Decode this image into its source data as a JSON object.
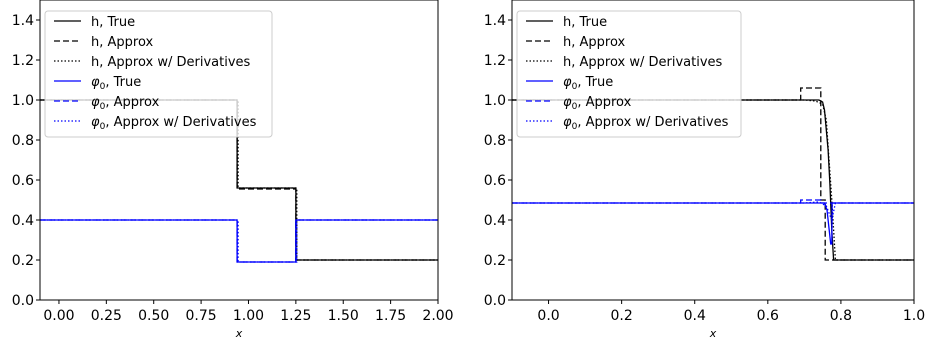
{
  "chart_data": [
    {
      "type": "line",
      "xlabel": "x",
      "ylabel": "",
      "xlim": [
        -0.1,
        2.0
      ],
      "ylim": [
        0.0,
        1.5
      ],
      "xticks": [
        "0.00",
        "0.25",
        "0.50",
        "0.75",
        "1.00",
        "1.25",
        "1.50",
        "1.75",
        "2.00"
      ],
      "yticks": [
        "0.0",
        "0.2",
        "0.4",
        "0.6",
        "0.8",
        "1.0",
        "1.2",
        "1.4"
      ],
      "legend_position": "top-left",
      "series": [
        {
          "name": "h, True",
          "color": "#000000",
          "style": "solid",
          "x": [
            -0.1,
            0.94,
            0.94,
            1.25,
            1.25,
            2.0
          ],
          "y": [
            1.0,
            1.0,
            0.56,
            0.56,
            0.2,
            0.2
          ]
        },
        {
          "name": "h, Approx",
          "color": "#000000",
          "style": "dashed",
          "x": [
            -0.1,
            0.94,
            0.94,
            1.25,
            1.25,
            2.0
          ],
          "y": [
            1.0,
            1.0,
            0.555,
            0.555,
            0.2,
            0.2
          ]
        },
        {
          "name": "h, Approx w/ Derivatives",
          "color": "#000000",
          "style": "dotted",
          "x": [
            -0.1,
            0.945,
            0.945,
            1.255,
            1.255,
            2.0
          ],
          "y": [
            1.0,
            1.0,
            0.56,
            0.56,
            0.2,
            0.2
          ]
        },
        {
          "name": "φ0, True",
          "color": "#0000ff",
          "style": "solid",
          "x": [
            -0.1,
            0.94,
            0.94,
            1.25,
            1.25,
            2.0
          ],
          "y": [
            0.4,
            0.4,
            0.19,
            0.19,
            0.4,
            0.4
          ]
        },
        {
          "name": "φ0, Approx",
          "color": "#0000ff",
          "style": "dashed",
          "x": [
            -0.1,
            0.94,
            0.94,
            1.25,
            1.25,
            2.0
          ],
          "y": [
            0.4,
            0.4,
            0.19,
            0.19,
            0.4,
            0.4
          ]
        },
        {
          "name": "φ0, Approx w/ Derivatives",
          "color": "#0000ff",
          "style": "dotted",
          "x": [
            -0.1,
            0.945,
            0.945,
            1.255,
            1.255,
            2.0
          ],
          "y": [
            0.4,
            0.4,
            0.19,
            0.19,
            0.4,
            0.4
          ]
        }
      ]
    },
    {
      "type": "line",
      "xlabel": "x",
      "ylabel": "",
      "xlim": [
        -0.1,
        1.0
      ],
      "ylim": [
        0.0,
        1.5
      ],
      "xticks": [
        "0.0",
        "0.2",
        "0.4",
        "0.6",
        "0.8",
        "1.0"
      ],
      "yticks": [
        "0.0",
        "0.2",
        "0.4",
        "0.6",
        "0.8",
        "1.0",
        "1.2",
        "1.4"
      ],
      "legend_position": "top-left",
      "series": [
        {
          "name": "h, True",
          "color": "#000000",
          "style": "solid",
          "x": [
            -0.1,
            0.74,
            0.75,
            0.755,
            0.765,
            0.77,
            0.77,
            0.775,
            0.78,
            1.0
          ],
          "y": [
            1.0,
            1.0,
            0.99,
            0.95,
            0.75,
            0.58,
            0.58,
            0.35,
            0.2,
            0.2
          ]
        },
        {
          "name": "h, Approx",
          "color": "#000000",
          "style": "dashed",
          "x": [
            -0.1,
            0.69,
            0.69,
            0.745,
            0.745,
            0.757,
            0.757,
            0.775,
            0.775,
            1.0
          ],
          "y": [
            1.0,
            1.0,
            1.06,
            1.06,
            0.5,
            0.5,
            0.2,
            0.2,
            0.2,
            0.2
          ]
        },
        {
          "name": "h, Approx w/ Derivatives",
          "color": "#000000",
          "style": "dotted",
          "x": [
            -0.1,
            0.7,
            0.73,
            0.75,
            0.76,
            0.775,
            0.785,
            1.0
          ],
          "y": [
            1.0,
            1.0,
            0.995,
            0.98,
            0.9,
            0.5,
            0.2,
            0.2
          ]
        },
        {
          "name": "φ0, True",
          "color": "#0000ff",
          "style": "solid",
          "x": [
            -0.1,
            0.755,
            0.762,
            0.768,
            0.772,
            0.775,
            0.776,
            0.78,
            1.0
          ],
          "y": [
            0.485,
            0.485,
            0.45,
            0.35,
            0.28,
            0.28,
            0.485,
            0.485,
            0.485
          ]
        },
        {
          "name": "φ0, Approx",
          "color": "#0000ff",
          "style": "dashed",
          "x": [
            -0.1,
            0.69,
            0.69,
            0.745,
            0.745,
            0.775,
            1.0
          ],
          "y": [
            0.485,
            0.485,
            0.5,
            0.5,
            0.485,
            0.485,
            0.485
          ]
        },
        {
          "name": "φ0, Approx w/ Derivatives",
          "color": "#0000ff",
          "style": "dotted",
          "x": [
            -0.1,
            0.7,
            0.74,
            0.76,
            0.775,
            0.785,
            1.0
          ],
          "y": [
            0.485,
            0.485,
            0.49,
            0.47,
            0.4,
            0.485,
            0.485
          ]
        }
      ]
    }
  ]
}
